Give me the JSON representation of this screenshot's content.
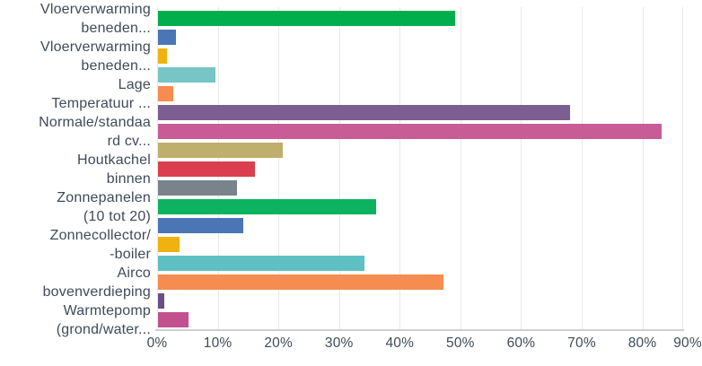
{
  "chart_data": {
    "type": "bar",
    "orientation": "horizontal",
    "title": "",
    "xlabel": "",
    "ylabel": "",
    "xlim": [
      0,
      90
    ],
    "grid": true,
    "x_tick_values": [
      0,
      10,
      20,
      30,
      40,
      50,
      60,
      70,
      80,
      90
    ],
    "x_tick_labels": [
      "0%",
      "10%",
      "20%",
      "30%",
      "40%",
      "50%",
      "60%",
      "70%",
      "80%",
      "90%"
    ],
    "bars": [
      {
        "label": "Vloerverwarming\nbeneden...",
        "value_pct": 49,
        "color": "#00ae4d"
      },
      {
        "label": "",
        "value_pct": 3,
        "color": "#4a76b5"
      },
      {
        "label": "Vloerverwarming\nbeneden...",
        "value_pct": 1.5,
        "color": "#efb211"
      },
      {
        "label": "",
        "value_pct": 9.5,
        "color": "#77c5c4"
      },
      {
        "label": "Lage\nTemperatuur ...",
        "value_pct": 2.5,
        "color": "#f68c4f"
      },
      {
        "label": "",
        "value_pct": 68,
        "color": "#7b5e92"
      },
      {
        "label": "Normale/standaa\nrd cv...",
        "value_pct": 83,
        "color": "#c95c97"
      },
      {
        "label": "",
        "value_pct": 20.5,
        "color": "#bfaf6c"
      },
      {
        "label": "Houtkachel\nbinnen",
        "value_pct": 16,
        "color": "#da3e4f"
      },
      {
        "label": "",
        "value_pct": 13,
        "color": "#7a828c"
      },
      {
        "label": "Zonnepanelen\n(10 tot 20)",
        "value_pct": 36,
        "color": "#0cb25f"
      },
      {
        "label": "",
        "value_pct": 14,
        "color": "#4a76b5"
      },
      {
        "label": "Zonnecollector/\n-boiler",
        "value_pct": 3.5,
        "color": "#efb211"
      },
      {
        "label": "",
        "value_pct": 34,
        "color": "#5fc0c4"
      },
      {
        "label": "Airco\nbovenverdieping",
        "value_pct": 47,
        "color": "#f68c4f"
      },
      {
        "label": "",
        "value_pct": 1,
        "color": "#6a4e86"
      },
      {
        "label": "Warmtepomp\n(grond/water...",
        "value_pct": 5,
        "color": "#c2508f"
      }
    ]
  },
  "colors": {
    "text": "#3f4a58",
    "gridline": "#e8e8e8",
    "axis_line": "#cfcfcf",
    "background": "#ffffff"
  }
}
